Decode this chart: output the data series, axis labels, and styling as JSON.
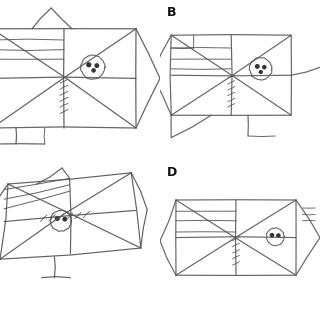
{
  "background_color": "#f8f8f8",
  "labels": [
    "",
    "B",
    "",
    "D"
  ],
  "line_color": "#666666",
  "figsize": [
    3.2,
    3.2
  ],
  "dpi": 100
}
